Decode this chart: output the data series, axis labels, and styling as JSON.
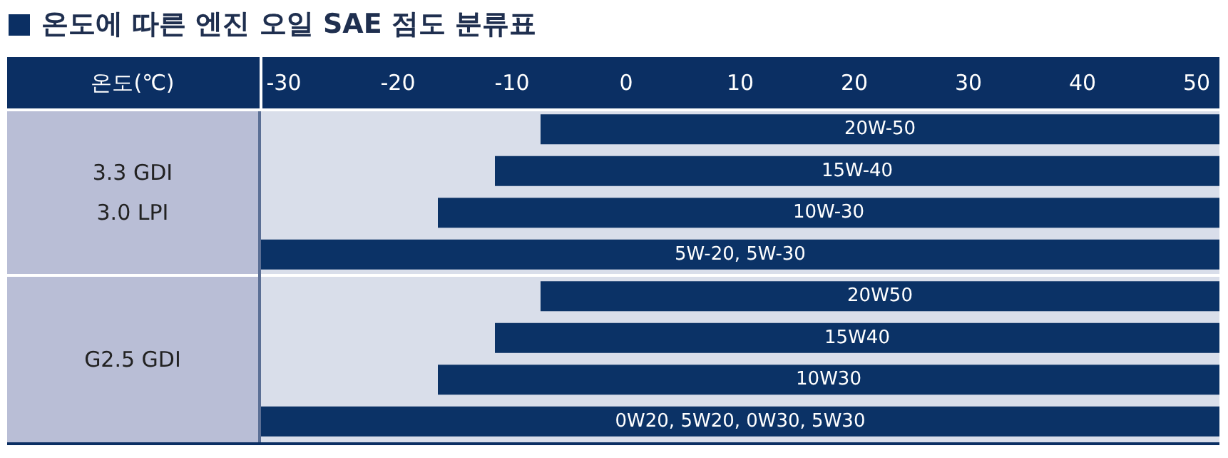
{
  "chart_data": {
    "type": "bar",
    "orientation": "horizontal",
    "title": "온도에 따른 엔진 오일 SAE 점도 분류표",
    "xlabel": "온도(℃)",
    "categories": [
      "20W-50",
      "15W-40",
      "10W-30",
      "5W-20, 5W-30",
      "20W50",
      "15W40",
      "10W30",
      "0W20, 5W20, 0W30, 5W30"
    ],
    "base": [
      -7.5,
      -11.5,
      -16.5,
      -32,
      -7.5,
      -11.5,
      -16.5,
      -32
    ],
    "values": [
      59.5,
      63.5,
      68.5,
      84,
      59.5,
      63.5,
      68.5,
      84
    ],
    "color": "#0b3266",
    "xlim": [
      -32,
      52
    ],
    "xticks": [
      -30,
      -20,
      -10,
      0,
      10,
      20,
      30,
      40,
      50
    ],
    "annotations": [
      "3.3 GDI\n3.0 LPI",
      "G2.5 GDI"
    ],
    "grid": false,
    "legend": false
  }
}
